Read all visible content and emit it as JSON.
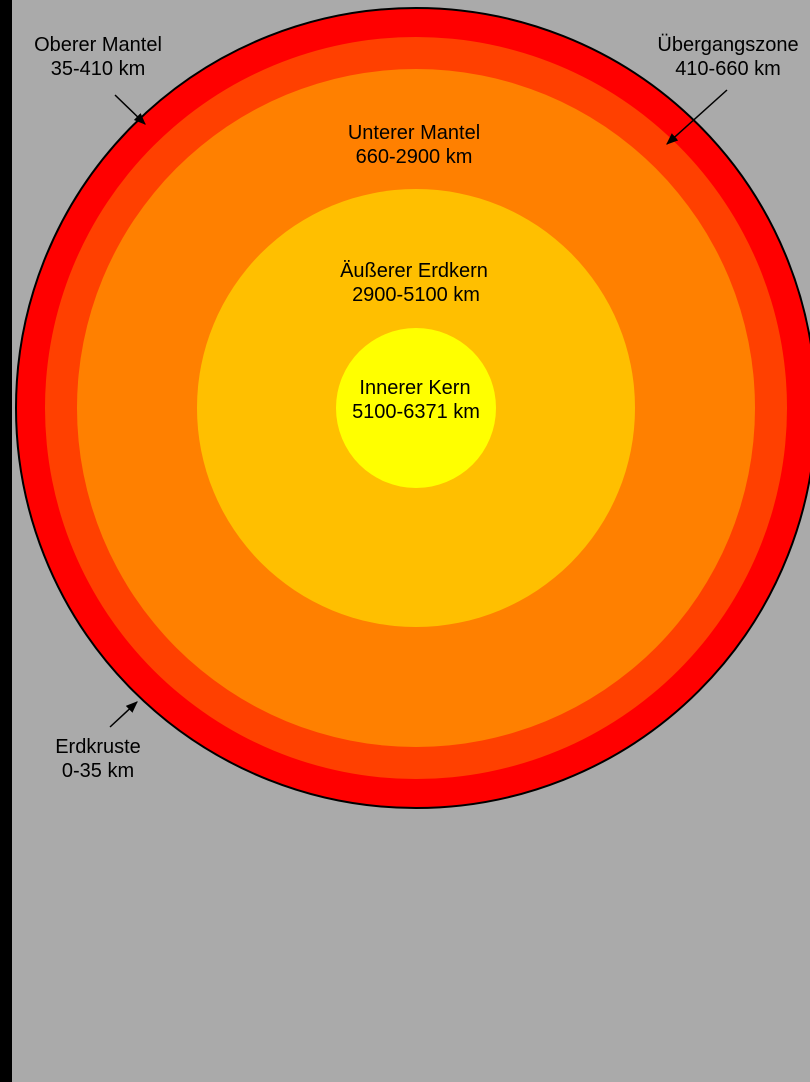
{
  "layers": [
    {
      "name": "Erdkruste",
      "range": "0-35 km"
    },
    {
      "name": "Oberer Mantel",
      "range": "35-410 km"
    },
    {
      "name": "Übergangszone",
      "range": "410-660 km"
    },
    {
      "name": "Unterer Mantel",
      "range": "660-2900 km"
    },
    {
      "name": "Äußerer Erdkern",
      "range": "2900-5100 km"
    },
    {
      "name": "Innerer Kern",
      "range": "5100-6371 km"
    }
  ]
}
